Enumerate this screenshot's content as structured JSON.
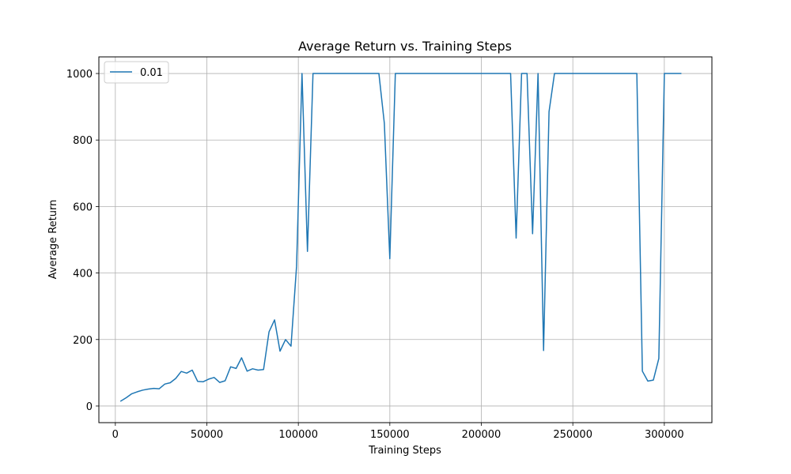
{
  "chart_data": {
    "type": "line",
    "title": "Average Return vs. Training Steps",
    "xlabel": "Training Steps",
    "ylabel": "Average Return",
    "xlim": [
      -9000,
      326000
    ],
    "ylim": [
      -50,
      1050
    ],
    "xticks": [
      0,
      50000,
      100000,
      150000,
      200000,
      250000,
      300000
    ],
    "yticks": [
      0,
      200,
      400,
      600,
      800,
      1000
    ],
    "grid": true,
    "legend_position": "top-left",
    "series": [
      {
        "name": "0.01",
        "color": "#1f77b4",
        "x": [
          3000,
          6000,
          9000,
          12000,
          15000,
          18000,
          21000,
          24000,
          27000,
          30000,
          33000,
          36000,
          39000,
          42000,
          45000,
          48000,
          51000,
          54000,
          57000,
          60000,
          63000,
          66000,
          69000,
          72000,
          75000,
          78000,
          81000,
          84000,
          87000,
          90000,
          93000,
          96000,
          99000,
          102000,
          105000,
          108000,
          111000,
          114000,
          117000,
          120000,
          123000,
          126000,
          129000,
          132000,
          135000,
          138000,
          141000,
          144000,
          147000,
          150000,
          153000,
          156000,
          159000,
          162000,
          165000,
          168000,
          171000,
          174000,
          177000,
          180000,
          183000,
          186000,
          189000,
          192000,
          195000,
          198000,
          201000,
          204000,
          207000,
          210000,
          213000,
          216000,
          219000,
          222000,
          225000,
          228000,
          231000,
          234000,
          237000,
          240000,
          243000,
          246000,
          249000,
          252000,
          255000,
          258000,
          261000,
          264000,
          267000,
          270000,
          273000,
          276000,
          279000,
          282000,
          285000,
          288000,
          291000,
          294000,
          297000,
          300000,
          303000,
          306000,
          309000
        ],
        "y": [
          15,
          25,
          37,
          43,
          48,
          51,
          53,
          52,
          66,
          70,
          83,
          104,
          99,
          108,
          74,
          73,
          81,
          86,
          71,
          76,
          118,
          113,
          145,
          105,
          112,
          108,
          110,
          223,
          259,
          165,
          200,
          180,
          420,
          1000,
          465,
          1000,
          1000,
          1000,
          1000,
          1000,
          1000,
          1000,
          1000,
          1000,
          1000,
          1000,
          1000,
          1000,
          850,
          443,
          1000,
          1000,
          1000,
          1000,
          1000,
          1000,
          1000,
          1000,
          1000,
          1000,
          1000,
          1000,
          1000,
          1000,
          1000,
          1000,
          1000,
          1000,
          1000,
          1000,
          1000,
          1000,
          505,
          1000,
          1000,
          518,
          1000,
          167,
          885,
          1000,
          1000,
          1000,
          1000,
          1000,
          1000,
          1000,
          1000,
          1000,
          1000,
          1000,
          1000,
          1000,
          1000,
          1000,
          1000,
          105,
          75,
          78,
          143,
          1000,
          1000,
          1000,
          1000
        ]
      }
    ]
  }
}
